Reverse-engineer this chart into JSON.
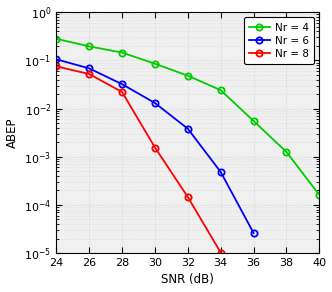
{
  "snr_green": [
    24,
    26,
    28,
    30,
    32,
    34,
    36,
    38,
    40
  ],
  "abep_green": [
    0.28,
    0.195,
    0.145,
    0.085,
    0.048,
    0.024,
    0.0055,
    0.00125,
    0.00016
  ],
  "snr_blue": [
    24,
    26,
    28,
    30,
    32,
    34,
    36
  ],
  "abep_blue": [
    0.105,
    0.068,
    0.032,
    0.013,
    0.0038,
    0.00048,
    2.6e-05
  ],
  "snr_red": [
    24,
    26,
    28,
    30,
    32,
    34
  ],
  "abep_red": [
    0.075,
    0.052,
    0.022,
    0.00155,
    0.000145,
    1.02e-05
  ],
  "color_green": "#00cc00",
  "color_blue": "#0000ff",
  "color_red": "#ff0000",
  "xlabel": "SNR (dB)",
  "ylabel": "ABEP",
  "xlim": [
    24,
    40
  ],
  "ylim_log": [
    -5,
    0
  ],
  "xticks": [
    24,
    26,
    28,
    30,
    32,
    34,
    36,
    38,
    40
  ],
  "legend_labels": [
    "Nr = 4",
    "Nr = 6",
    "Nr = 8"
  ],
  "bg_color": "#f0f0f0",
  "grid_color": "#d0d0d0"
}
